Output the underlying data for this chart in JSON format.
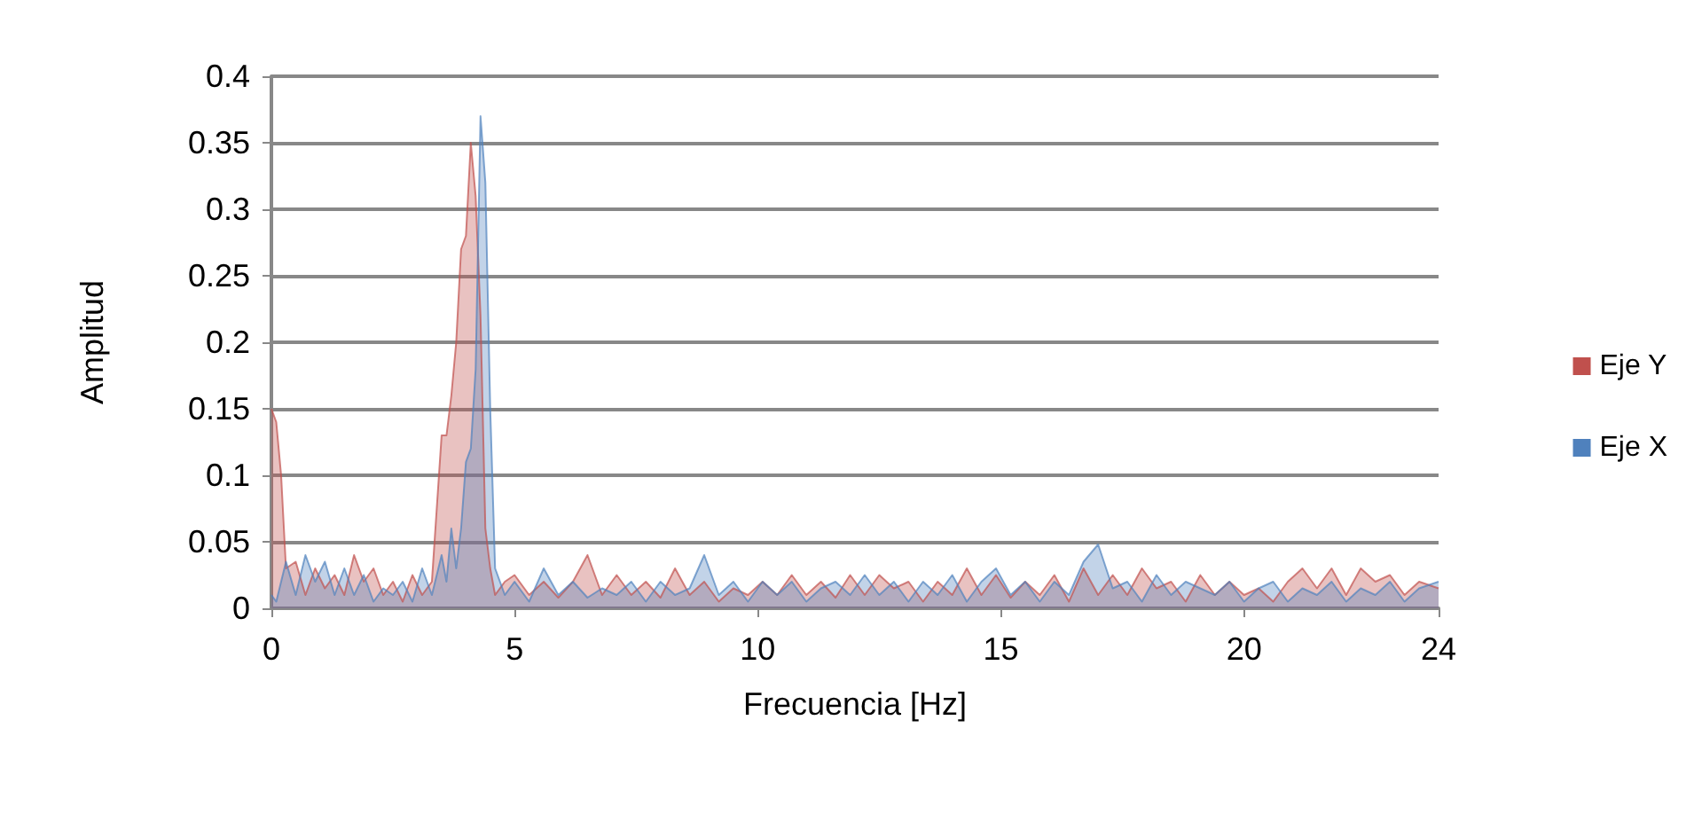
{
  "chart_data": {
    "type": "area",
    "xlabel": "Frecuencia [Hz]",
    "ylabel": "Amplitud",
    "x": [
      0,
      0.1,
      0.2,
      0.3,
      0.5,
      0.7,
      0.9,
      1.1,
      1.3,
      1.5,
      1.7,
      1.9,
      2.1,
      2.3,
      2.5,
      2.7,
      2.9,
      3.1,
      3.3,
      3.5,
      3.6,
      3.7,
      3.8,
      3.9,
      4.0,
      4.1,
      4.2,
      4.3,
      4.4,
      4.5,
      4.6,
      4.8,
      5.0,
      5.3,
      5.6,
      5.9,
      6.2,
      6.5,
      6.8,
      7.1,
      7.4,
      7.7,
      8.0,
      8.3,
      8.6,
      8.9,
      9.2,
      9.5,
      9.8,
      10.1,
      10.4,
      10.7,
      11.0,
      11.3,
      11.6,
      11.9,
      12.2,
      12.5,
      12.8,
      13.1,
      13.4,
      13.7,
      14.0,
      14.3,
      14.6,
      14.9,
      15.2,
      15.5,
      15.8,
      16.1,
      16.4,
      16.7,
      17.0,
      17.3,
      17.6,
      17.9,
      18.2,
      18.5,
      18.8,
      19.1,
      19.4,
      19.7,
      20.0,
      20.3,
      20.6,
      20.9,
      21.2,
      21.5,
      21.8,
      22.1,
      22.4,
      22.7,
      23.0,
      23.3,
      23.6,
      24
    ],
    "series": [
      {
        "name": "Eje Y",
        "color": "#c0504d",
        "values": [
          0.15,
          0.14,
          0.1,
          0.03,
          0.035,
          0.01,
          0.03,
          0.015,
          0.025,
          0.01,
          0.04,
          0.02,
          0.03,
          0.01,
          0.02,
          0.005,
          0.025,
          0.01,
          0.02,
          0.13,
          0.13,
          0.16,
          0.2,
          0.27,
          0.28,
          0.35,
          0.31,
          0.22,
          0.06,
          0.03,
          0.01,
          0.02,
          0.025,
          0.01,
          0.02,
          0.008,
          0.02,
          0.04,
          0.01,
          0.025,
          0.01,
          0.02,
          0.008,
          0.03,
          0.01,
          0.02,
          0.005,
          0.015,
          0.01,
          0.02,
          0.01,
          0.025,
          0.01,
          0.02,
          0.008,
          0.025,
          0.01,
          0.025,
          0.015,
          0.02,
          0.005,
          0.02,
          0.01,
          0.03,
          0.01,
          0.025,
          0.008,
          0.02,
          0.01,
          0.025,
          0.005,
          0.03,
          0.01,
          0.025,
          0.01,
          0.03,
          0.015,
          0.02,
          0.005,
          0.025,
          0.01,
          0.02,
          0.01,
          0.015,
          0.005,
          0.02,
          0.03,
          0.015,
          0.03,
          0.01,
          0.03,
          0.02,
          0.025,
          0.01,
          0.02,
          0.015
        ]
      },
      {
        "name": "Eje X",
        "color": "#4f81bd",
        "values": [
          0.01,
          0.005,
          0.02,
          0.035,
          0.01,
          0.04,
          0.02,
          0.035,
          0.01,
          0.03,
          0.01,
          0.025,
          0.005,
          0.015,
          0.01,
          0.02,
          0.005,
          0.03,
          0.01,
          0.04,
          0.02,
          0.06,
          0.03,
          0.06,
          0.11,
          0.12,
          0.18,
          0.37,
          0.32,
          0.15,
          0.03,
          0.01,
          0.02,
          0.005,
          0.03,
          0.01,
          0.02,
          0.008,
          0.015,
          0.01,
          0.02,
          0.005,
          0.02,
          0.01,
          0.015,
          0.04,
          0.01,
          0.02,
          0.005,
          0.02,
          0.01,
          0.02,
          0.005,
          0.015,
          0.02,
          0.01,
          0.025,
          0.01,
          0.02,
          0.005,
          0.02,
          0.01,
          0.025,
          0.005,
          0.02,
          0.03,
          0.01,
          0.02,
          0.005,
          0.02,
          0.01,
          0.035,
          0.048,
          0.015,
          0.02,
          0.005,
          0.025,
          0.01,
          0.02,
          0.015,
          0.01,
          0.02,
          0.005,
          0.015,
          0.02,
          0.005,
          0.015,
          0.01,
          0.02,
          0.005,
          0.015,
          0.01,
          0.02,
          0.005,
          0.015,
          0.02
        ]
      }
    ],
    "xlim": [
      0,
      24
    ],
    "xticks": [
      0,
      5,
      10,
      15,
      20,
      24
    ],
    "ylim": [
      0,
      0.4
    ],
    "yticks": [
      0,
      0.05,
      0.1,
      0.15,
      0.2,
      0.25,
      0.3,
      0.35,
      0.4
    ],
    "grid": "y",
    "legend": "right",
    "marker": "none"
  }
}
